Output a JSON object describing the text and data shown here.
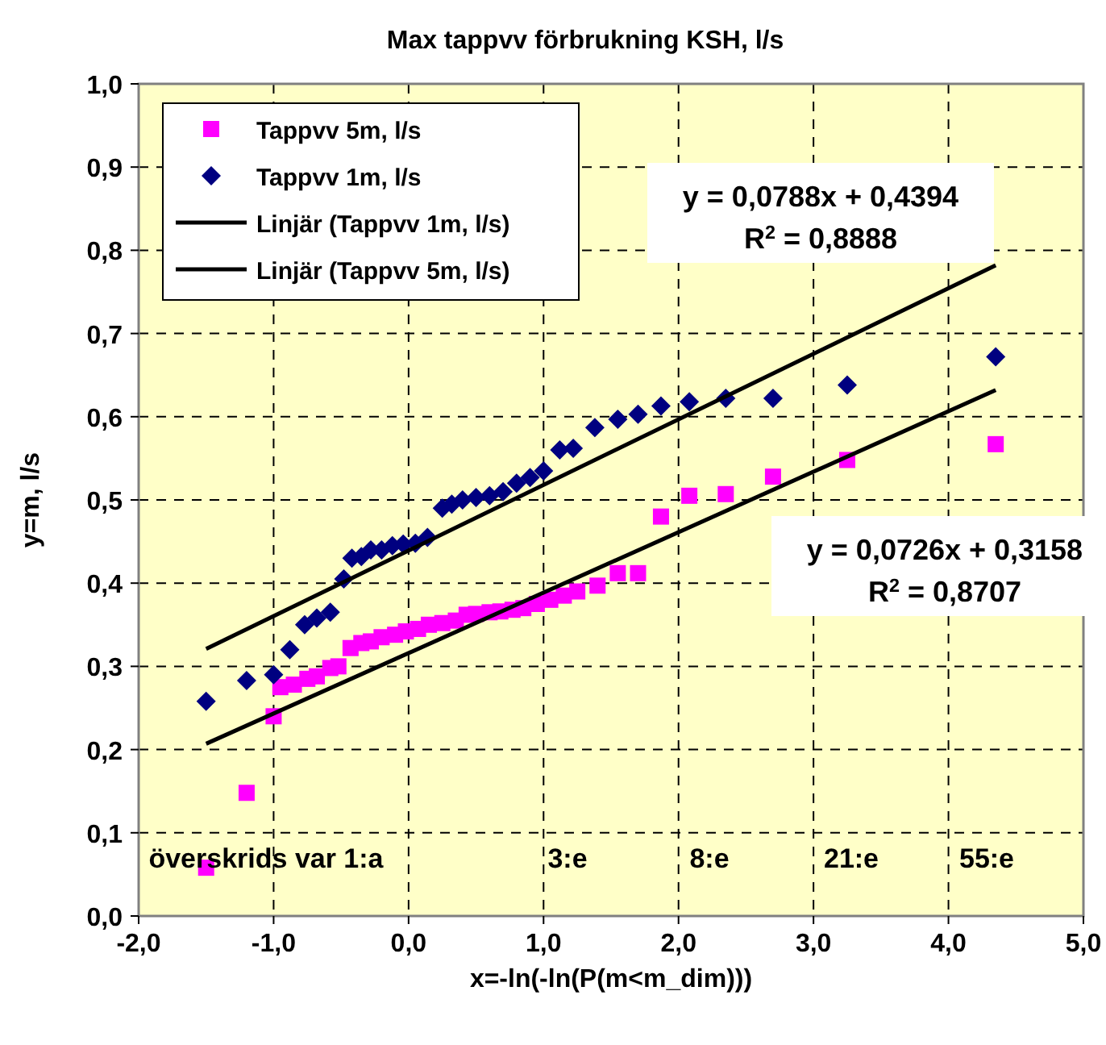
{
  "chart_data": {
    "type": "scatter",
    "title": "Max tappvv förbrukning KSH, l/s",
    "xlabel": "x=-ln(-ln(P(m<m_dim)))",
    "ylabel": "y=m, l/s",
    "xlim": [
      -2,
      5
    ],
    "xticks": [
      {
        "value": -2,
        "label": "-2,0"
      },
      {
        "value": -1,
        "label": "-1,0"
      },
      {
        "value": 0,
        "label": "0,0"
      },
      {
        "value": 1,
        "label": "1,0"
      },
      {
        "value": 2,
        "label": "2,0"
      },
      {
        "value": 3,
        "label": "3,0"
      },
      {
        "value": 4,
        "label": "4,0"
      },
      {
        "value": 5,
        "label": "5,0"
      }
    ],
    "ylim": [
      0,
      1
    ],
    "yticks": [
      {
        "value": 0,
        "label": "0,0"
      },
      {
        "value": 0.1,
        "label": "0,1"
      },
      {
        "value": 0.2,
        "label": "0,2"
      },
      {
        "value": 0.3,
        "label": "0,3"
      },
      {
        "value": 0.4,
        "label": "0,4"
      },
      {
        "value": 0.5,
        "label": "0,5"
      },
      {
        "value": 0.6,
        "label": "0,6"
      },
      {
        "value": 0.7,
        "label": "0,7"
      },
      {
        "value": 0.8,
        "label": "0,8"
      },
      {
        "value": 0.9,
        "label": "0,9"
      },
      {
        "value": 1,
        "label": "1,0"
      }
    ],
    "grid": true,
    "legend": "top left",
    "series": [
      {
        "name": "Tappvv 5m, l/s",
        "type": "scatter",
        "marker": "square",
        "color": "#ff00ff",
        "x": [
          -1.5,
          -1.2,
          -1.0,
          -0.95,
          -0.85,
          -0.75,
          -0.68,
          -0.58,
          -0.52,
          -0.43,
          -0.35,
          -0.28,
          -0.2,
          -0.1,
          -0.02,
          0.07,
          0.15,
          0.25,
          0.35,
          0.43,
          0.5,
          0.6,
          0.68,
          0.77,
          0.85,
          0.95,
          1.05,
          1.15,
          1.25,
          1.4,
          1.55,
          1.7,
          1.87,
          2.08,
          2.35,
          2.7,
          3.25,
          4.35
        ],
        "values": [
          0.058,
          0.148,
          0.24,
          0.275,
          0.278,
          0.285,
          0.288,
          0.298,
          0.3,
          0.322,
          0.328,
          0.33,
          0.335,
          0.338,
          0.342,
          0.345,
          0.35,
          0.352,
          0.355,
          0.362,
          0.363,
          0.365,
          0.366,
          0.368,
          0.37,
          0.375,
          0.38,
          0.385,
          0.39,
          0.397,
          0.412,
          0.412,
          0.48,
          0.505,
          0.507,
          0.528,
          0.548,
          0.567
        ]
      },
      {
        "name": "Tappvv 1m, l/s",
        "type": "scatter",
        "marker": "diamond",
        "color": "#000080",
        "x": [
          -1.5,
          -1.2,
          -1.0,
          -0.88,
          -0.77,
          -0.68,
          -0.58,
          -0.48,
          -0.42,
          -0.35,
          -0.28,
          -0.2,
          -0.12,
          -0.04,
          0.05,
          0.14,
          0.25,
          0.32,
          0.4,
          0.5,
          0.6,
          0.7,
          0.8,
          0.9,
          1.0,
          1.12,
          1.22,
          1.38,
          1.55,
          1.7,
          1.87,
          2.08,
          2.35,
          2.7,
          3.25,
          4.35
        ],
        "values": [
          0.258,
          0.283,
          0.29,
          0.32,
          0.35,
          0.358,
          0.365,
          0.405,
          0.43,
          0.432,
          0.44,
          0.44,
          0.445,
          0.447,
          0.448,
          0.455,
          0.49,
          0.495,
          0.5,
          0.503,
          0.505,
          0.51,
          0.52,
          0.527,
          0.535,
          0.56,
          0.562,
          0.587,
          0.597,
          0.603,
          0.613,
          0.618,
          0.622,
          0.622,
          0.638,
          0.672
        ]
      },
      {
        "name": "Linjär (Tappvv 1m, l/s)",
        "type": "line",
        "marker": "none",
        "line_style": "solid",
        "color": "#000000",
        "x": [
          -1.5,
          4.35
        ],
        "values": [
          0.321,
          0.782
        ]
      },
      {
        "name": "Linjär (Tappvv 5m, l/s)",
        "type": "line",
        "marker": "none",
        "line_style": "solid",
        "color": "#000000",
        "x": [
          -1.5,
          4.35
        ],
        "values": [
          0.207,
          0.632
        ]
      }
    ],
    "annotations": [
      "y = 0,0788x + 0,4394\nR$^{2}$ = 0,8888",
      "y = 0,0726x + 0,3158\nR$^{2}$ = 0,8707",
      "överskrids var 1:a",
      "3:e",
      "8:e",
      "21:e",
      "55:e"
    ]
  }
}
